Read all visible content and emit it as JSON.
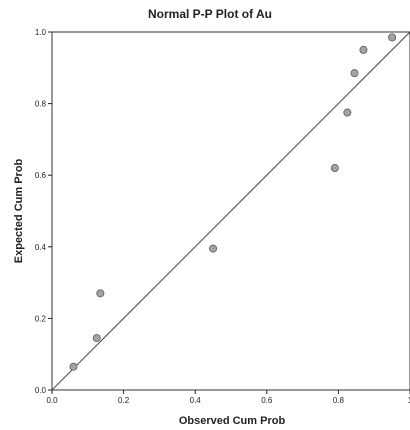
{
  "chart_data": {
    "type": "scatter",
    "title": "Normal P-P Plot of Au",
    "xlabel": "Observed Cum Prob",
    "ylabel": "Expected Cum Prob",
    "xlim": [
      0,
      1
    ],
    "ylim": [
      0,
      1
    ],
    "x_ticks": [
      "0.0",
      "0.2",
      "0.4",
      "0.6",
      "0.8",
      "1"
    ],
    "y_ticks": [
      "0.0",
      "0.2",
      "0.4",
      "0.6",
      "0.8",
      "1.0"
    ],
    "grid": false,
    "reference_line": [
      [
        0,
        0
      ],
      [
        1,
        1
      ]
    ],
    "points": [
      {
        "x": 0.06,
        "y": 0.065
      },
      {
        "x": 0.125,
        "y": 0.145
      },
      {
        "x": 0.135,
        "y": 0.27
      },
      {
        "x": 0.45,
        "y": 0.395
      },
      {
        "x": 0.79,
        "y": 0.62
      },
      {
        "x": 0.825,
        "y": 0.775
      },
      {
        "x": 0.845,
        "y": 0.885
      },
      {
        "x": 0.87,
        "y": 0.95
      },
      {
        "x": 0.95,
        "y": 0.985
      }
    ],
    "colors": {
      "point_fill": "#a3a3a3",
      "point_stroke": "#5a5a5a",
      "line": "#4a4a4a",
      "axis": "#222222"
    }
  }
}
